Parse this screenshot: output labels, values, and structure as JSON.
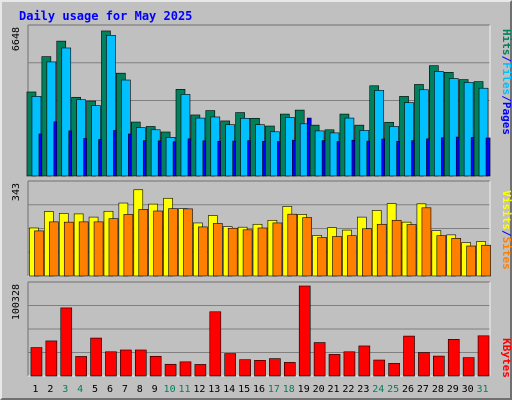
{
  "chart_data": {
    "type": "bar",
    "title": "Daily usage for May 2025",
    "categories": [
      "1",
      "2",
      "3",
      "4",
      "5",
      "6",
      "7",
      "8",
      "9",
      "10",
      "11",
      "12",
      "13",
      "14",
      "15",
      "16",
      "17",
      "18",
      "19",
      "20",
      "21",
      "22",
      "23",
      "24",
      "25",
      "26",
      "27",
      "28",
      "29",
      "30",
      "31"
    ],
    "weekend_days": [
      "3",
      "4",
      "10",
      "11",
      "17",
      "18",
      "24",
      "25",
      "31"
    ],
    "panels": [
      {
        "id": "hits-files-pages",
        "scale_label": "6648",
        "ylim": [
          0,
          6648
        ],
        "series": [
          {
            "name": "Hits",
            "color": "#00805c",
            "values": [
              3800,
              5400,
              6100,
              3560,
              3390,
              6560,
              4650,
              2440,
              2240,
              1990,
              3920,
              2760,
              2960,
              2490,
              2870,
              2610,
              2260,
              2800,
              2980,
              2300,
              2090,
              2800,
              2300,
              4080,
              2430,
              3600,
              4140,
              4990,
              4690,
              4360,
              4270
            ]
          },
          {
            "name": "Files",
            "color": "#00c0ff",
            "values": [
              3600,
              5160,
              5790,
              3450,
              3180,
              6360,
              4340,
              2190,
              2090,
              1750,
              3690,
              2620,
              2670,
              2320,
              2610,
              2320,
              2000,
              2650,
              2360,
              2040,
              1950,
              2620,
              2060,
              3870,
              2240,
              3320,
              3900,
              4730,
              4410,
              4230,
              3970
            ]
          },
          {
            "name": "Pages",
            "color": "#0000ff",
            "values": [
              1900,
              2450,
              2040,
              1700,
              1650,
              2060,
              1900,
              1600,
              1590,
              1550,
              1680,
              1590,
              1570,
              1580,
              1600,
              1570,
              1560,
              1620,
              2620,
              1600,
              1560,
              1620,
              1580,
              1670,
              1570,
              1600,
              1680,
              1730,
              1760,
              1740,
              1720
            ]
          }
        ]
      },
      {
        "id": "visits-sites",
        "scale_label": "343",
        "ylim": [
          0,
          343
        ],
        "series": [
          {
            "name": "Visits",
            "color": "#ffff00",
            "values": [
              181,
              243,
              236,
              234,
              222,
              244,
              275,
              325,
              271,
              293,
              254,
              200,
              228,
              186,
              184,
              195,
              210,
              262,
              232,
              153,
              182,
              173,
              222,
              247,
              273,
              203,
              272,
              171,
              155,
              126,
              130
            ]
          },
          {
            "name": "Sites",
            "color": "#ff8000",
            "values": [
              170,
              204,
              203,
              204,
              204,
              216,
              232,
              251,
              245,
              254,
              253,
              185,
              198,
              180,
              174,
              181,
              200,
              233,
              220,
              145,
              149,
              152,
              178,
              195,
              210,
              194,
              257,
              152,
              142,
              113,
              116
            ]
          }
        ]
      },
      {
        "id": "kbytes",
        "scale_label": "100328",
        "ylim": [
          0,
          100328
        ],
        "series": [
          {
            "name": "KBytes",
            "color": "#ff0000",
            "values": [
              31700,
              39100,
              75900,
              21800,
              42300,
              27000,
              29000,
              29000,
              22000,
              13100,
              15800,
              12900,
              71600,
              25000,
              18200,
              17500,
              19400,
              15200,
              100328,
              37300,
              24100,
              27000,
              33500,
              17800,
              14100,
              44500,
              26200,
              22200,
              40900,
              20500,
              44800
            ]
          }
        ]
      }
    ],
    "axis_labels": {
      "hits_files_pages": [
        "Pages",
        "/",
        "Files",
        "/",
        "Hits"
      ],
      "visits_sites": [
        "Sites",
        "/",
        "Visits"
      ],
      "kbytes": [
        "KBytes"
      ]
    },
    "colors": {
      "background": "#c0c0c0",
      "title": "#0000ff",
      "weekday_label": "#000000",
      "weekend_label": "#00805c",
      "separator": "#0000ff",
      "grid": "#808080"
    }
  }
}
